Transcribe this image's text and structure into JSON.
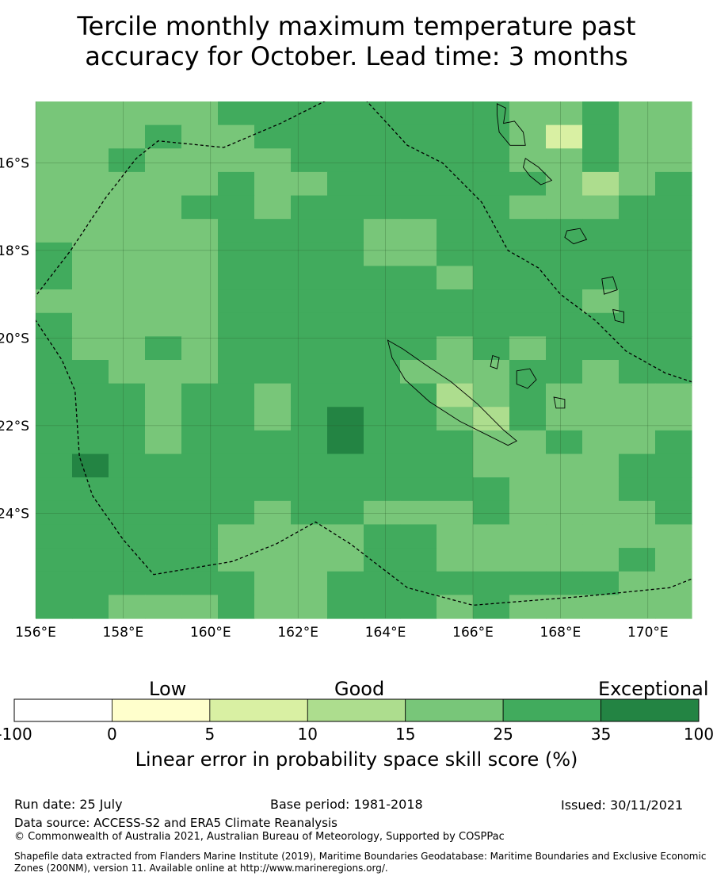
{
  "title": {
    "line1": "Tercile monthly maximum temperature past",
    "line2": "accuracy for October. Lead time: 3 months"
  },
  "map": {
    "lon_range": [
      156,
      171
    ],
    "lat_range": [
      -26.4,
      -14.6
    ],
    "lon_ticks": [
      {
        "value": 156,
        "label": "156°E"
      },
      {
        "value": 158,
        "label": "158°E"
      },
      {
        "value": 160,
        "label": "160°E"
      },
      {
        "value": 162,
        "label": "162°E"
      },
      {
        "value": 164,
        "label": "164°E"
      },
      {
        "value": 166,
        "label": "166°E"
      },
      {
        "value": 168,
        "label": "168°E"
      },
      {
        "value": 170,
        "label": "170°E"
      }
    ],
    "lat_ticks": [
      {
        "value": -16,
        "label": "16°S"
      },
      {
        "value": -18,
        "label": "18°S"
      },
      {
        "value": -20,
        "label": "20°S"
      },
      {
        "value": -22,
        "label": "22°S"
      },
      {
        "value": -24,
        "label": "24°S"
      }
    ],
    "grid": true,
    "eez_boundary_lonlat": [
      [
        155.8,
        -19.3
      ],
      [
        156.8,
        -18.0
      ],
      [
        157.6,
        -16.8
      ],
      [
        158.3,
        -15.9
      ],
      [
        158.8,
        -15.5
      ],
      [
        160.3,
        -15.65
      ],
      [
        161.6,
        -15.1
      ],
      [
        162.8,
        -14.5
      ],
      [
        163.3,
        -14.3
      ],
      [
        164.5,
        -15.6
      ],
      [
        165.3,
        -16.0
      ],
      [
        166.2,
        -16.9
      ],
      [
        166.8,
        -18.0
      ],
      [
        167.5,
        -18.4
      ],
      [
        168.0,
        -19.0
      ],
      [
        168.8,
        -19.6
      ],
      [
        169.5,
        -20.3
      ],
      [
        170.4,
        -20.8
      ],
      [
        171.0,
        -21.0
      ],
      [
        171.5,
        -25.3
      ],
      [
        170.5,
        -25.7
      ],
      [
        168.5,
        -25.9
      ],
      [
        166.0,
        -26.1
      ],
      [
        164.5,
        -25.7
      ],
      [
        163.2,
        -24.7
      ],
      [
        162.4,
        -24.2
      ],
      [
        161.5,
        -24.7
      ],
      [
        160.5,
        -25.1
      ],
      [
        158.7,
        -25.4
      ],
      [
        158.0,
        -24.6
      ],
      [
        157.3,
        -23.6
      ],
      [
        157.0,
        -22.7
      ],
      [
        156.9,
        -21.2
      ],
      [
        156.6,
        -20.5
      ],
      [
        155.8,
        -19.3
      ]
    ],
    "islands": [
      {
        "name": "Espiritu Santo",
        "lonlat": [
          [
            166.55,
            -14.65
          ],
          [
            166.75,
            -14.75
          ],
          [
            166.7,
            -15.1
          ],
          [
            166.95,
            -15.05
          ],
          [
            167.15,
            -15.3
          ],
          [
            167.2,
            -15.6
          ],
          [
            166.85,
            -15.6
          ],
          [
            166.6,
            -15.3
          ],
          [
            166.55,
            -14.9
          ]
        ]
      },
      {
        "name": "Malekula",
        "lonlat": [
          [
            167.2,
            -15.9
          ],
          [
            167.5,
            -16.1
          ],
          [
            167.8,
            -16.4
          ],
          [
            167.55,
            -16.5
          ],
          [
            167.3,
            -16.3
          ],
          [
            167.15,
            -16.1
          ]
        ]
      },
      {
        "name": "Efate",
        "lonlat": [
          [
            168.15,
            -17.55
          ],
          [
            168.45,
            -17.5
          ],
          [
            168.6,
            -17.75
          ],
          [
            168.3,
            -17.85
          ],
          [
            168.1,
            -17.7
          ]
        ]
      },
      {
        "name": "Erromango",
        "lonlat": [
          [
            168.95,
            -18.65
          ],
          [
            169.2,
            -18.6
          ],
          [
            169.3,
            -18.9
          ],
          [
            169.0,
            -19.0
          ]
        ]
      },
      {
        "name": "Tanna",
        "lonlat": [
          [
            169.2,
            -19.35
          ],
          [
            169.45,
            -19.4
          ],
          [
            169.45,
            -19.65
          ],
          [
            169.25,
            -19.6
          ]
        ]
      },
      {
        "name": "Grande Terre",
        "lonlat": [
          [
            164.05,
            -20.05
          ],
          [
            164.4,
            -20.25
          ],
          [
            164.9,
            -20.6
          ],
          [
            165.5,
            -21.0
          ],
          [
            166.1,
            -21.5
          ],
          [
            166.7,
            -22.1
          ],
          [
            167.0,
            -22.35
          ],
          [
            166.8,
            -22.45
          ],
          [
            166.4,
            -22.25
          ],
          [
            165.7,
            -21.9
          ],
          [
            165.0,
            -21.45
          ],
          [
            164.45,
            -20.95
          ],
          [
            164.15,
            -20.45
          ]
        ]
      },
      {
        "name": "Lifou",
        "lonlat": [
          [
            167.0,
            -20.75
          ],
          [
            167.3,
            -20.7
          ],
          [
            167.45,
            -20.95
          ],
          [
            167.25,
            -21.15
          ],
          [
            167.0,
            -21.05
          ]
        ]
      },
      {
        "name": "Mare",
        "lonlat": [
          [
            167.85,
            -21.35
          ],
          [
            168.1,
            -21.4
          ],
          [
            168.1,
            -21.6
          ],
          [
            167.9,
            -21.6
          ]
        ]
      },
      {
        "name": "Ouvea",
        "lonlat": [
          [
            166.45,
            -20.4
          ],
          [
            166.6,
            -20.45
          ],
          [
            166.55,
            -20.7
          ],
          [
            166.4,
            -20.65
          ]
        ]
      }
    ]
  },
  "chart_data": {
    "type": "heatmap",
    "x": [
      156.0,
      156.83,
      157.67,
      158.5,
      159.33,
      160.17,
      161.0,
      161.83,
      162.67,
      163.5,
      164.33,
      165.17,
      166.0,
      166.83,
      167.67,
      168.5,
      169.33,
      170.17
    ],
    "y": [
      -14.6,
      -15.15,
      -15.7,
      -16.25,
      -16.8,
      -17.35,
      -17.9,
      -18.45,
      -19.0,
      -19.55,
      -20.1,
      -20.65,
      -21.2,
      -21.75,
      -22.3,
      -22.85,
      -23.4,
      -23.95,
      -24.5,
      -25.05,
      -25.6,
      -26.15
    ],
    "value_units": "%",
    "class_codes": [
      "-100–0",
      "0–5",
      "5–10",
      "10–15",
      "15–25",
      "25–35",
      "35–100"
    ],
    "grid": [
      [
        4,
        4,
        4,
        4,
        4,
        5,
        5,
        5,
        5,
        5,
        5,
        5,
        5,
        4,
        4,
        5,
        4,
        4
      ],
      [
        4,
        4,
        4,
        5,
        4,
        4,
        5,
        5,
        5,
        5,
        5,
        5,
        5,
        4,
        2,
        5,
        4,
        4
      ],
      [
        4,
        4,
        5,
        4,
        4,
        4,
        4,
        5,
        5,
        5,
        5,
        5,
        5,
        4,
        4,
        5,
        4,
        4
      ],
      [
        4,
        4,
        4,
        4,
        4,
        5,
        4,
        4,
        5,
        5,
        5,
        5,
        5,
        5,
        4,
        3,
        4,
        5
      ],
      [
        4,
        4,
        4,
        4,
        5,
        5,
        4,
        5,
        5,
        5,
        5,
        5,
        5,
        4,
        4,
        4,
        5,
        5
      ],
      [
        4,
        4,
        4,
        4,
        4,
        5,
        5,
        5,
        5,
        4,
        4,
        5,
        5,
        5,
        5,
        5,
        5,
        5
      ],
      [
        5,
        4,
        4,
        4,
        4,
        5,
        5,
        5,
        5,
        4,
        4,
        5,
        5,
        5,
        5,
        5,
        5,
        5
      ],
      [
        5,
        4,
        4,
        4,
        4,
        5,
        5,
        5,
        5,
        5,
        5,
        4,
        5,
        5,
        5,
        5,
        5,
        5
      ],
      [
        4,
        4,
        4,
        4,
        4,
        5,
        5,
        5,
        5,
        5,
        5,
        5,
        5,
        5,
        5,
        4,
        5,
        5
      ],
      [
        5,
        4,
        4,
        4,
        4,
        5,
        5,
        5,
        5,
        5,
        5,
        5,
        5,
        5,
        5,
        5,
        5,
        5
      ],
      [
        5,
        4,
        4,
        5,
        4,
        5,
        5,
        5,
        5,
        5,
        5,
        4,
        5,
        4,
        5,
        5,
        5,
        5
      ],
      [
        5,
        5,
        4,
        4,
        4,
        5,
        5,
        5,
        5,
        5,
        4,
        4,
        4,
        5,
        5,
        4,
        5,
        5
      ],
      [
        5,
        5,
        5,
        4,
        5,
        5,
        4,
        5,
        5,
        5,
        5,
        3,
        4,
        5,
        4,
        4,
        4,
        4
      ],
      [
        5,
        5,
        5,
        4,
        5,
        5,
        4,
        5,
        6,
        5,
        5,
        4,
        3,
        5,
        4,
        4,
        4,
        4
      ],
      [
        5,
        5,
        5,
        4,
        5,
        5,
        5,
        5,
        6,
        5,
        5,
        5,
        4,
        4,
        5,
        4,
        4,
        5
      ],
      [
        5,
        6,
        5,
        5,
        5,
        5,
        5,
        5,
        5,
        5,
        5,
        5,
        4,
        4,
        4,
        4,
        5,
        5
      ],
      [
        5,
        5,
        5,
        5,
        5,
        5,
        5,
        5,
        5,
        5,
        5,
        5,
        5,
        4,
        4,
        4,
        5,
        5
      ],
      [
        5,
        5,
        5,
        5,
        5,
        5,
        4,
        5,
        5,
        4,
        4,
        4,
        5,
        4,
        4,
        4,
        4,
        5
      ],
      [
        5,
        5,
        5,
        5,
        5,
        4,
        4,
        4,
        4,
        5,
        5,
        4,
        4,
        4,
        4,
        4,
        4,
        4
      ],
      [
        5,
        5,
        5,
        5,
        5,
        4,
        4,
        4,
        4,
        5,
        5,
        4,
        4,
        4,
        4,
        4,
        5,
        4
      ],
      [
        5,
        5,
        5,
        5,
        5,
        5,
        4,
        4,
        5,
        5,
        5,
        5,
        5,
        5,
        5,
        5,
        4,
        4
      ],
      [
        5,
        5,
        4,
        4,
        4,
        5,
        4,
        4,
        5,
        5,
        5,
        4,
        5,
        4,
        4,
        4,
        4,
        4
      ]
    ]
  },
  "colorbar": {
    "ticks": [
      "-100",
      "0",
      "5",
      "10",
      "15",
      "25",
      "35",
      "100"
    ],
    "colors": [
      "#ffffff",
      "#ffffcc",
      "#d9f0a3",
      "#addd8e",
      "#78c679",
      "#41ab5d",
      "#238443"
    ],
    "captions": {
      "low": "Low",
      "good": "Good",
      "exceptional": "Exceptional"
    },
    "label": "Linear error in probability space skill score (%)"
  },
  "footer": {
    "run_date": "Run date: 25 July",
    "base_period": "Base period: 1981-2018",
    "issued": "Issued: 30/11/2021",
    "data_source": "Data source: ACCESS-S2 and ERA5 Climate Reanalysis",
    "copyright": "© Commonwealth of Australia 2021, Australian Bureau of Meteorology, Supported by COSPPac",
    "shapefile_line1": "Shapefile data extracted from Flanders Marine Institute (2019), Maritime Boundaries Geodatabase: Maritime Boundaries and Exclusive Economic",
    "shapefile_line2": "Zones (200NM), version 11. Available online at http://www.marineregions.org/."
  }
}
